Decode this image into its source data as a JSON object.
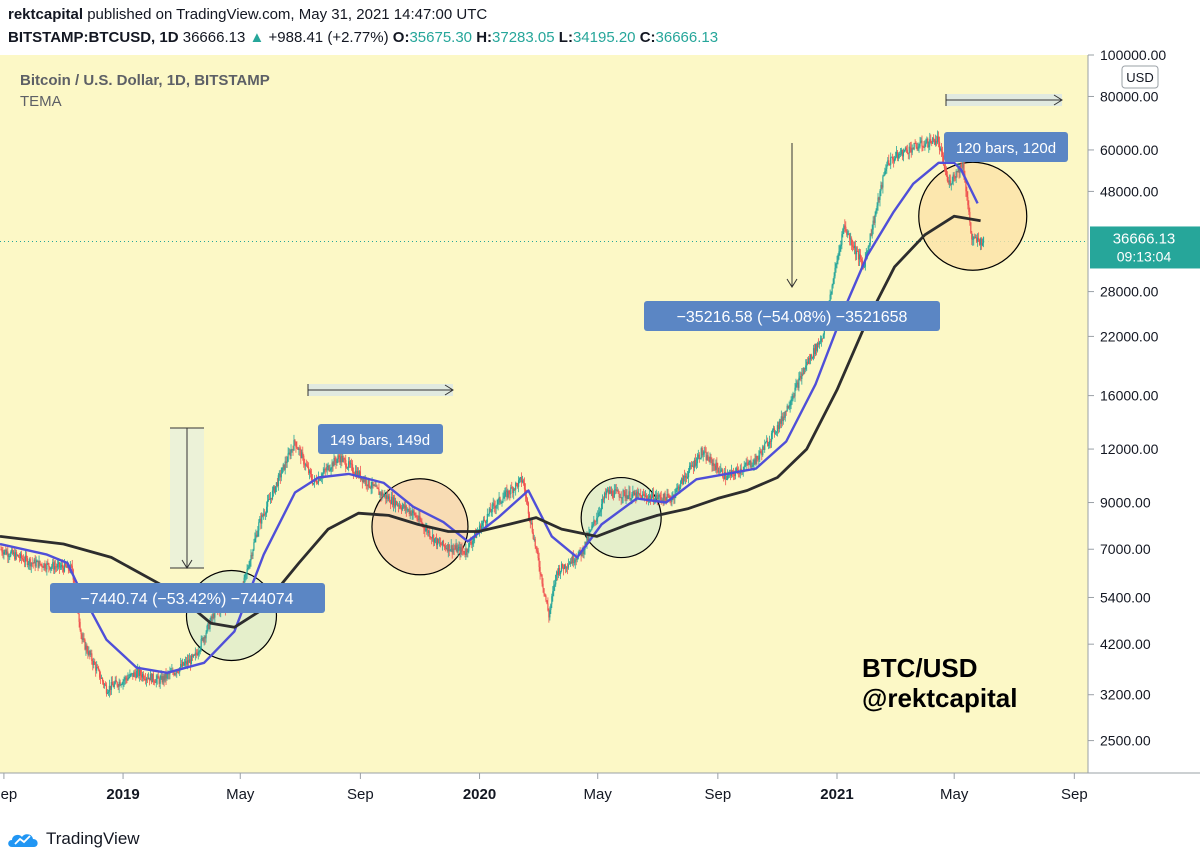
{
  "header": {
    "author": "rektcapital",
    "published_text": "published on TradingView.com, May 31, 2021 14:47:00 UTC",
    "symbol": "BITSTAMP:BTCUSD, 1D",
    "last_price": "36666.13",
    "change": "+988.41 (+2.77%)",
    "o_label": "O:",
    "o_value": "35675.30",
    "h_label": "H:",
    "h_value": "37283.05",
    "l_label": "L:",
    "l_value": "34195.20",
    "c_label": "C:",
    "c_value": "36666.13"
  },
  "legend": {
    "title": "Bitcoin / U.S. Dollar, 1D, BITSTAMP",
    "indicator": "TEMA"
  },
  "price_axis": {
    "currency": "USD",
    "current_price": "36666.13",
    "countdown": "09:13:04"
  },
  "footer": {
    "brand": "TradingView"
  },
  "colors": {
    "background": "#fcf8c6",
    "up": "#26a69a",
    "down": "#ef5350",
    "tema_fast": "#4f4fd8",
    "tema_slow": "#2d2d2d",
    "label_box": "#5b86c4"
  },
  "chart_data": {
    "type": "line",
    "title": "Bitcoin / U.S. Dollar, 1D, BITSTAMP",
    "scale": "log",
    "ylim": [
      2100,
      100000
    ],
    "y_ticks": [
      2500,
      3200,
      4200,
      5400,
      7000,
      9000,
      12000,
      16000,
      22000,
      28000,
      36666.13,
      48000,
      60000,
      80000,
      100000
    ],
    "y_tick_labels": [
      "2500.00",
      "3200.00",
      "4200.00",
      "5400.00",
      "7000.00",
      "9000.00",
      "12000.00",
      "16000.00",
      "22000.00",
      "28000.00",
      "",
      "48000.00",
      "60000.00",
      "80000.00",
      "100000.00"
    ],
    "x_range": [
      "2018-08-28",
      "2021-09-15"
    ],
    "x_ticks": [
      {
        "date": "2018-09-01",
        "label": "Sep",
        "bold": false
      },
      {
        "date": "2019-01-01",
        "label": "2019",
        "bold": true
      },
      {
        "date": "2019-05-01",
        "label": "May",
        "bold": false
      },
      {
        "date": "2019-09-01",
        "label": "Sep",
        "bold": false
      },
      {
        "date": "2020-01-01",
        "label": "2020",
        "bold": true
      },
      {
        "date": "2020-05-01",
        "label": "May",
        "bold": false
      },
      {
        "date": "2020-09-01",
        "label": "Sep",
        "bold": false
      },
      {
        "date": "2021-01-01",
        "label": "2021",
        "bold": true
      },
      {
        "date": "2021-05-01",
        "label": "May",
        "bold": false
      },
      {
        "date": "2021-09-01",
        "label": "Sep",
        "bold": false
      }
    ],
    "series": [
      {
        "name": "BTC/USD close",
        "color": "#7a9a7a",
        "x": [
          "2018-08-28",
          "2018-10-01",
          "2018-11-10",
          "2018-11-20",
          "2018-12-15",
          "2019-01-15",
          "2019-02-08",
          "2019-03-15",
          "2019-04-05",
          "2019-05-01",
          "2019-05-20",
          "2019-06-26",
          "2019-07-15",
          "2019-08-10",
          "2019-09-20",
          "2019-10-25",
          "2019-11-20",
          "2019-12-17",
          "2020-01-15",
          "2020-02-14",
          "2020-03-12",
          "2020-03-20",
          "2020-04-15",
          "2020-05-10",
          "2020-06-15",
          "2020-07-15",
          "2020-08-15",
          "2020-09-10",
          "2020-10-10",
          "2020-11-05",
          "2020-12-01",
          "2020-12-17",
          "2021-01-08",
          "2021-01-28",
          "2021-02-21",
          "2021-03-13",
          "2021-04-14",
          "2021-04-25",
          "2021-05-10",
          "2021-05-19",
          "2021-05-31"
        ],
        "values": [
          7000,
          6500,
          6300,
          4300,
          3300,
          3600,
          3450,
          3900,
          5000,
          5400,
          8000,
          12500,
          10000,
          11500,
          9500,
          8500,
          7200,
          6900,
          8800,
          10200,
          4900,
          6200,
          6900,
          9500,
          9300,
          9200,
          11800,
          10300,
          11300,
          14000,
          19000,
          22000,
          40000,
          32000,
          56000,
          60000,
          63500,
          50000,
          56000,
          37000,
          36666
        ]
      },
      {
        "name": "TEMA (fast)",
        "color": "#4f4fd8",
        "x": [
          "2018-08-28",
          "2018-10-15",
          "2018-11-05",
          "2018-11-20",
          "2018-12-15",
          "2019-01-15",
          "2019-02-15",
          "2019-03-25",
          "2019-04-25",
          "2019-05-25",
          "2019-06-26",
          "2019-07-20",
          "2019-08-20",
          "2019-09-25",
          "2019-10-25",
          "2019-11-25",
          "2019-12-20",
          "2020-01-20",
          "2020-02-20",
          "2020-03-15",
          "2020-04-10",
          "2020-05-05",
          "2020-06-10",
          "2020-07-10",
          "2020-08-10",
          "2020-09-10",
          "2020-10-10",
          "2020-11-10",
          "2020-12-10",
          "2021-01-10",
          "2021-02-01",
          "2021-02-28",
          "2021-03-20",
          "2021-04-15",
          "2021-05-01",
          "2021-05-08",
          "2021-05-25"
        ],
        "values": [
          7200,
          6800,
          6500,
          5500,
          4300,
          3700,
          3600,
          3800,
          4500,
          6800,
          9500,
          10300,
          10500,
          10000,
          8800,
          8100,
          7300,
          8300,
          9600,
          7500,
          6700,
          8000,
          9200,
          9000,
          10200,
          10500,
          10800,
          12500,
          17000,
          26000,
          34000,
          43000,
          50000,
          56000,
          56000,
          54000,
          45000
        ]
      },
      {
        "name": "TEMA (slow)",
        "color": "#2d2d2d",
        "x": [
          "2018-08-28",
          "2018-11-01",
          "2018-12-20",
          "2019-02-20",
          "2019-04-01",
          "2019-04-25",
          "2019-05-20",
          "2019-06-30",
          "2019-07-30",
          "2019-08-30",
          "2019-09-30",
          "2019-10-30",
          "2019-11-30",
          "2019-12-31",
          "2020-01-31",
          "2020-02-28",
          "2020-03-25",
          "2020-04-30",
          "2020-06-01",
          "2020-07-01",
          "2020-08-01",
          "2020-09-01",
          "2020-10-01",
          "2020-11-01",
          "2020-12-01",
          "2021-01-01",
          "2021-02-01",
          "2021-03-01",
          "2021-04-01",
          "2021-05-01",
          "2021-05-28"
        ],
        "values": [
          7500,
          7200,
          6700,
          5600,
          4700,
          4600,
          5000,
          6500,
          7800,
          8500,
          8400,
          8000,
          7700,
          7700,
          8000,
          8300,
          7800,
          7500,
          8000,
          8400,
          8700,
          9200,
          9600,
          10300,
          12000,
          16500,
          24000,
          32000,
          38000,
          42000,
          41000
        ]
      }
    ],
    "annotations": [
      {
        "text": "−7440.74 (−53.42%) −744074",
        "kind": "range-label"
      },
      {
        "text": "149 bars, 149d",
        "kind": "range-label"
      },
      {
        "text": "−35216.58 (−54.08%) −3521658",
        "kind": "range-label"
      },
      {
        "text": "120 bars, 120d",
        "kind": "range-label"
      },
      {
        "text": "BTC/USD",
        "kind": "watermark"
      },
      {
        "text": "@rektcapital",
        "kind": "watermark"
      }
    ]
  }
}
